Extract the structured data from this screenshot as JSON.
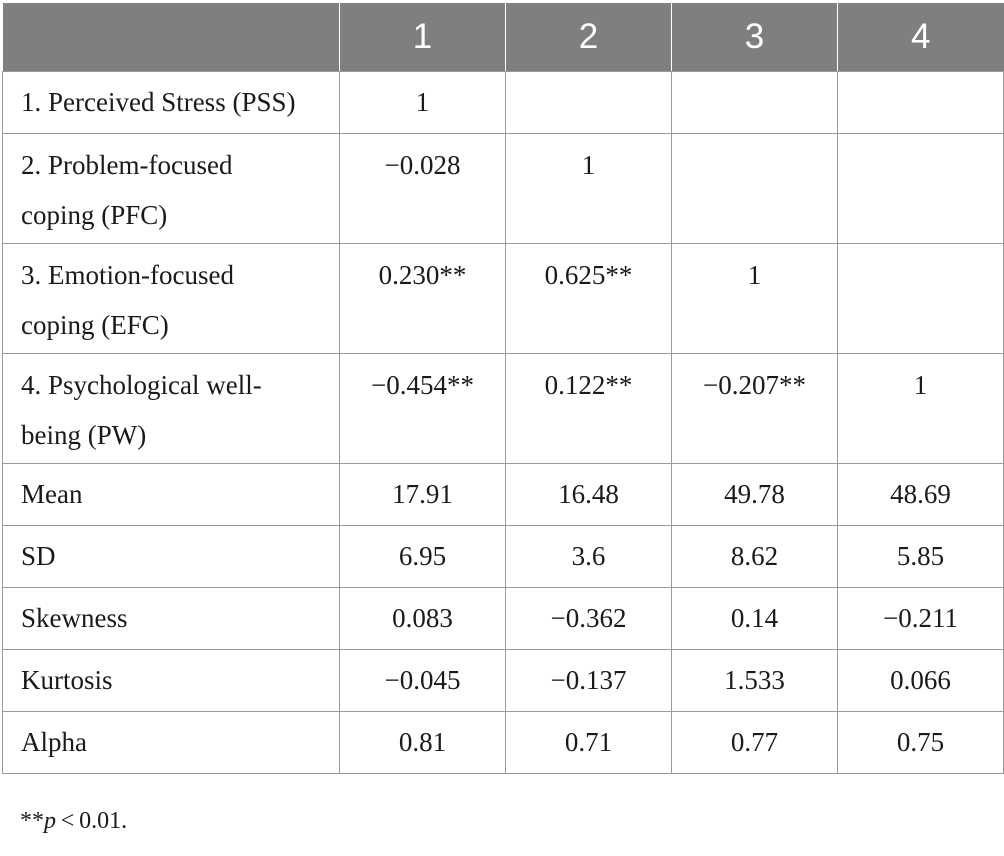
{
  "table": {
    "header": [
      "",
      "1",
      "2",
      "3",
      "4"
    ],
    "rows": [
      {
        "label": "1. Perceived Stress (PSS)",
        "values": [
          "1",
          "",
          "",
          ""
        ]
      },
      {
        "label_line1": "2. Problem-focused",
        "label_line2": "coping (PFC)",
        "values": [
          "−0.028",
          "1",
          "",
          ""
        ]
      },
      {
        "label_line1": "3. Emotion-focused",
        "label_line2": "coping (EFC)",
        "values": [
          "0.230**",
          "0.625**",
          "1",
          ""
        ]
      },
      {
        "label_line1": "4. Psychological well-",
        "label_line2": "being (PW)",
        "values": [
          "−0.454**",
          "0.122**",
          "−0.207**",
          "1"
        ]
      },
      {
        "label": "Mean",
        "values": [
          "17.91",
          "16.48",
          "49.78",
          "48.69"
        ]
      },
      {
        "label": "SD",
        "values": [
          "6.95",
          "3.6",
          "8.62",
          "5.85"
        ]
      },
      {
        "label": "Skewness",
        "values": [
          "0.083",
          "−0.362",
          "0.14",
          "−0.211"
        ]
      },
      {
        "label": "Kurtosis",
        "values": [
          "−0.045",
          "−0.137",
          "1.533",
          "0.066"
        ]
      },
      {
        "label": "Alpha",
        "values": [
          "0.81",
          "0.71",
          "0.77",
          "0.75"
        ]
      }
    ]
  },
  "note": {
    "stars": "**",
    "p": "p",
    "rest": " < 0.01."
  }
}
